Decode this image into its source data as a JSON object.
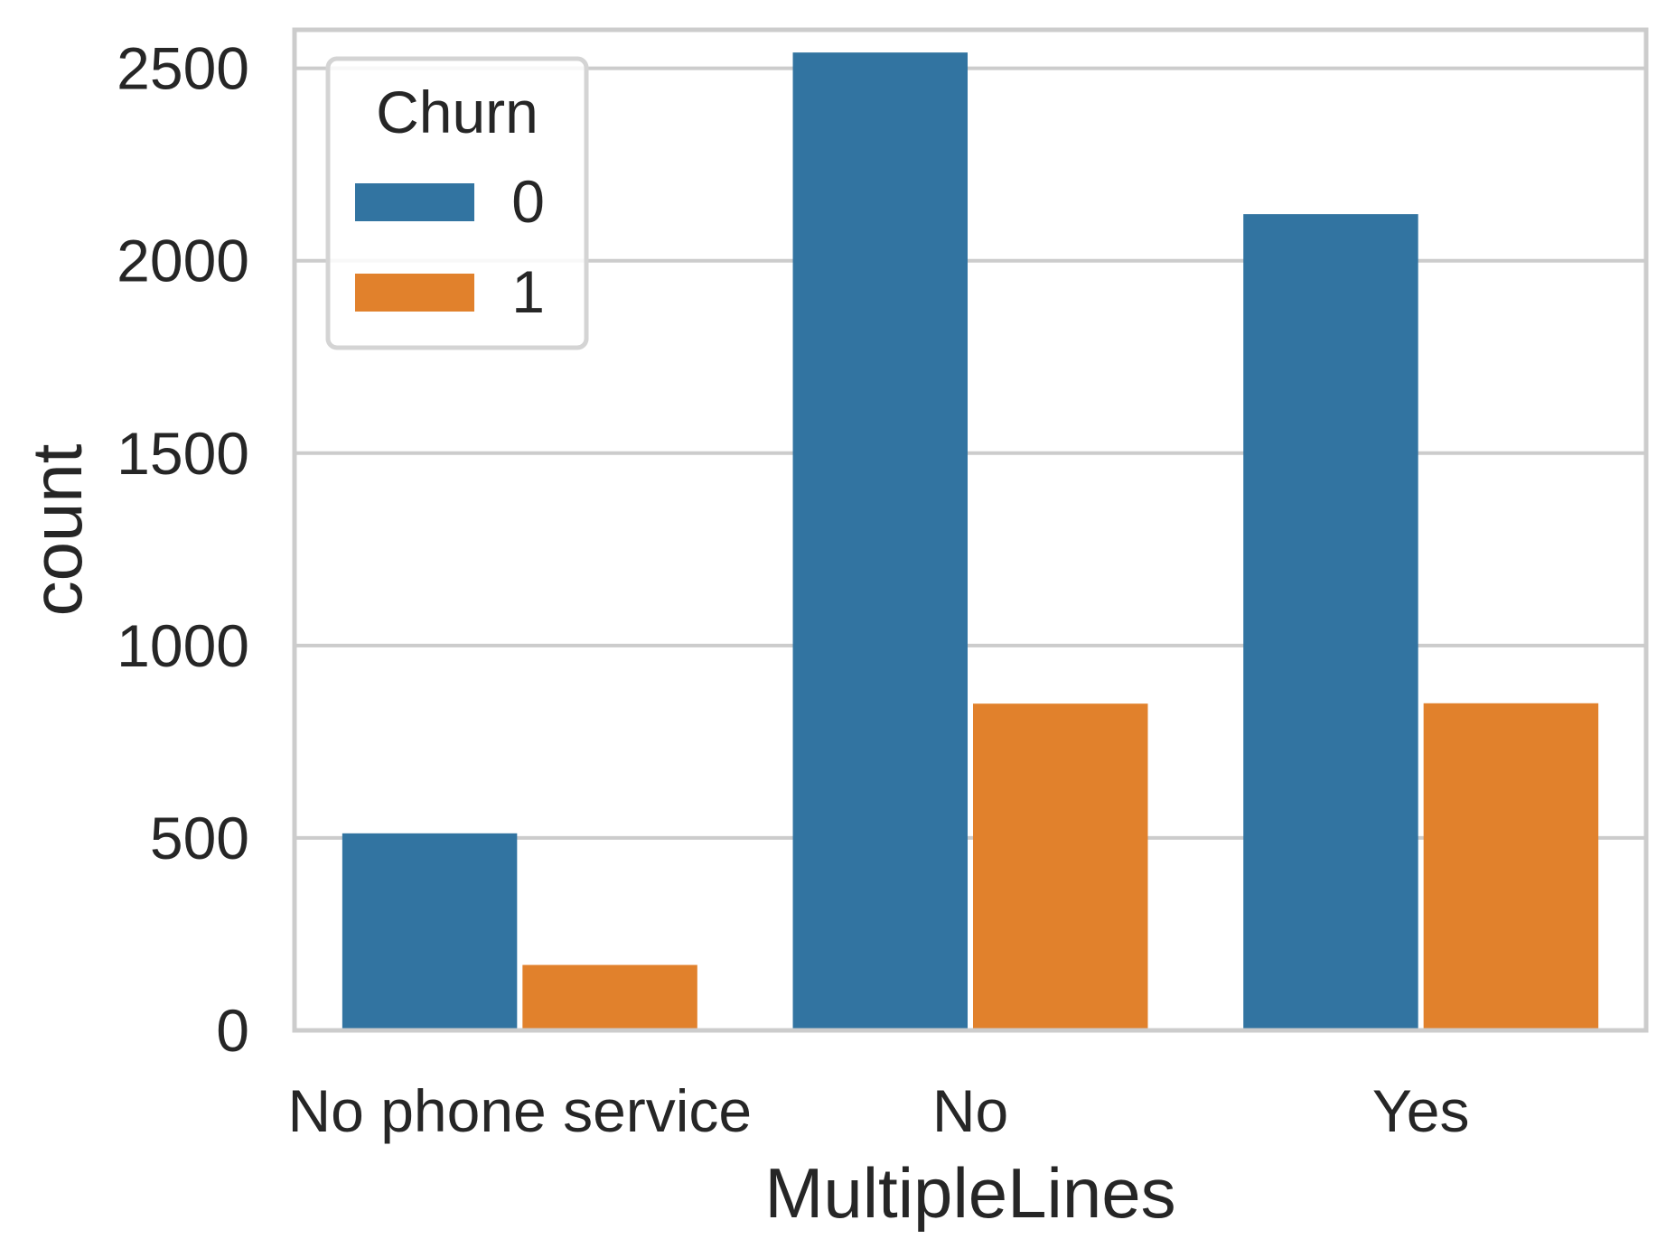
{
  "chart_data": {
    "type": "bar",
    "xlabel": "MultipleLines",
    "ylabel": "count",
    "categories": [
      "No phone service",
      "No",
      "Yes"
    ],
    "series": [
      {
        "name": "0",
        "values": [
          512,
          2541,
          2121
        ]
      },
      {
        "name": "1",
        "values": [
          170,
          849,
          850
        ]
      }
    ],
    "ylim": [
      0,
      2600
    ],
    "yticks": [
      0,
      500,
      1000,
      1500,
      2000,
      2500
    ],
    "grid": "horizontal",
    "legend": {
      "title": "Churn",
      "placement": "top-left"
    },
    "colors": {
      "series_0": "#3274a1",
      "series_1": "#e1812c",
      "grid": "#cccccc",
      "frame": "#cccccc",
      "legend_border": "#d4d4d4",
      "text": "#262626"
    }
  }
}
